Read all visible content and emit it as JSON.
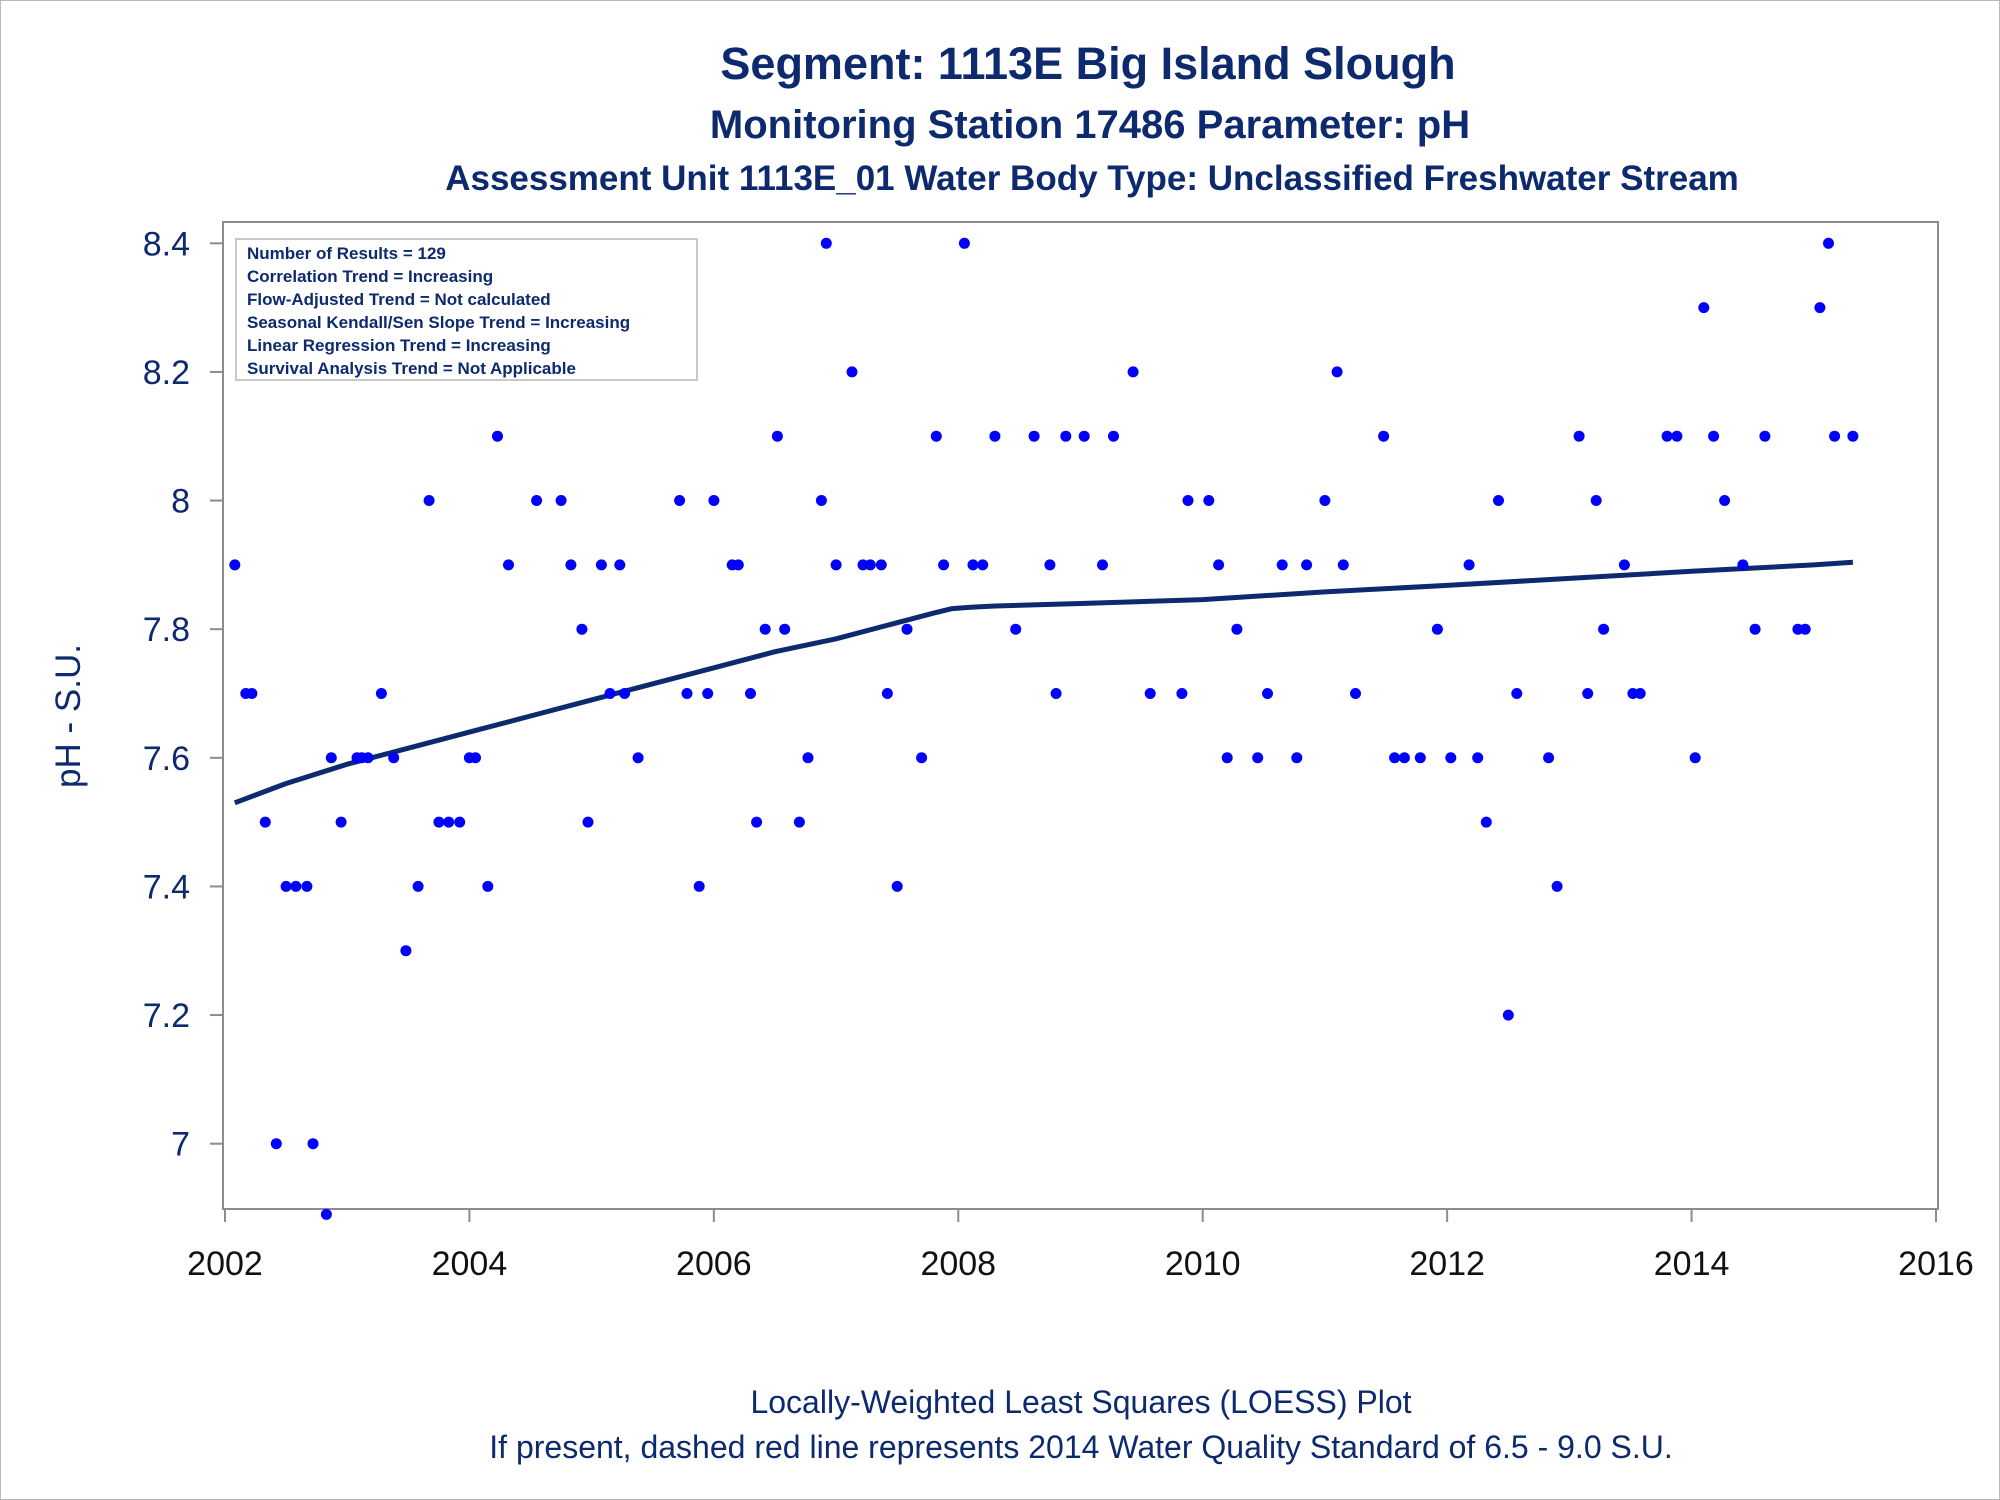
{
  "titles": {
    "line1": "Segment: 1113E  Big Island Slough",
    "line2": "Monitoring Station 17486 Parameter: pH",
    "line3": "Assessment Unit 1113E_01   Water Body Type: Unclassified Freshwater Stream"
  },
  "footnotes": {
    "line1": "Locally-Weighted Least Squares (LOESS) Plot",
    "line2": "If present, dashed red line represents 2014 Water Quality Standard of 6.5 - 9.0 S.U."
  },
  "inset": {
    "lines": [
      "Number of Results = 129",
      "Correlation Trend = Increasing",
      "Flow-Adjusted Trend = Not calculated",
      "Seasonal Kendall/Sen Slope Trend = Increasing",
      "Linear Regression Trend = Increasing",
      "Survival Analysis Trend = Not Applicable"
    ]
  },
  "colors": {
    "points": "#0000ff",
    "loess": "#0d2a6e",
    "text": "#0d2a6e",
    "axis": "#8c8c8c"
  },
  "chart_data": {
    "type": "scatter",
    "title": "Segment: 1113E  Big Island Slough",
    "xlabel": "",
    "ylabel": "pH - S.U.",
    "xlim": [
      2002,
      2016
    ],
    "ylim": [
      6.9,
      8.43
    ],
    "xticks": [
      2002,
      2004,
      2006,
      2008,
      2010,
      2012,
      2014,
      2016
    ],
    "xtick_labels": [
      "2002",
      "2004",
      "2006",
      "2008",
      "2010",
      "2012",
      "2014",
      "2016"
    ],
    "yticks": [
      7,
      7.2,
      7.4,
      7.6,
      7.8,
      8,
      8.2,
      8.4
    ],
    "ytick_labels": [
      "7",
      "7.2",
      "7.4",
      "7.6",
      "7.8",
      "8",
      "8.2",
      "8.4"
    ],
    "grid": false,
    "series": [
      {
        "kind": "points",
        "x": [
          2002.08,
          2002.17,
          2002.22,
          2002.33,
          2002.42,
          2002.5,
          2002.58,
          2002.67,
          2002.72,
          2002.83,
          2002.87,
          2002.95,
          2003.08,
          2003.12,
          2003.17,
          2003.28,
          2003.38,
          2003.48,
          2003.58,
          2003.67,
          2003.75,
          2003.83,
          2003.92,
          2004.0,
          2004.05,
          2004.15,
          2004.23,
          2004.32,
          2004.55,
          2004.75,
          2004.83,
          2004.92,
          2004.97,
          2005.08,
          2005.15,
          2005.23,
          2005.27,
          2005.38,
          2005.72,
          2005.78,
          2005.88,
          2005.95,
          2006.0,
          2006.15,
          2006.2,
          2006.3,
          2006.35,
          2006.42,
          2006.52,
          2006.58,
          2006.7,
          2006.77,
          2006.88,
          2006.92,
          2007.0,
          2007.13,
          2007.22,
          2007.28,
          2007.37,
          2007.42,
          2007.5,
          2007.58,
          2007.7,
          2007.82,
          2007.88,
          2008.05,
          2008.12,
          2008.2,
          2008.3,
          2008.47,
          2008.62,
          2008.75,
          2008.8,
          2008.88,
          2009.03,
          2009.18,
          2009.27,
          2009.43,
          2009.57,
          2009.83,
          2009.88,
          2010.05,
          2010.13,
          2010.2,
          2010.28,
          2010.45,
          2010.53,
          2010.65,
          2010.77,
          2010.85,
          2011.0,
          2011.1,
          2011.15,
          2011.25,
          2011.48,
          2011.57,
          2011.65,
          2011.78,
          2011.92,
          2012.03,
          2012.18,
          2012.25,
          2012.32,
          2012.42,
          2012.5,
          2012.57,
          2012.83,
          2012.9,
          2013.08,
          2013.15,
          2013.22,
          2013.28,
          2013.45,
          2013.52,
          2013.58,
          2013.8,
          2013.88,
          2014.03,
          2014.1,
          2014.18,
          2014.27,
          2014.42,
          2014.52,
          2014.6,
          2014.87,
          2014.93,
          2015.05,
          2015.12,
          2015.17,
          2015.32
        ],
        "y": [
          7.9,
          7.7,
          7.7,
          7.5,
          7.0,
          7.4,
          7.4,
          7.4,
          7.0,
          6.89,
          7.6,
          7.5,
          7.6,
          7.6,
          7.6,
          7.7,
          7.6,
          7.3,
          7.4,
          8.0,
          7.5,
          7.5,
          7.5,
          7.6,
          7.6,
          7.4,
          8.1,
          7.9,
          8.0,
          8.0,
          7.9,
          7.8,
          7.5,
          7.9,
          7.7,
          7.9,
          7.7,
          7.6,
          8.0,
          7.7,
          7.4,
          7.7,
          8.0,
          7.9,
          7.9,
          7.7,
          7.5,
          7.8,
          8.1,
          7.8,
          7.5,
          7.6,
          8.0,
          8.4,
          7.9,
          8.2,
          7.9,
          7.9,
          7.9,
          7.7,
          7.4,
          7.8,
          7.6,
          8.1,
          7.9,
          8.4,
          7.9,
          7.9,
          8.1,
          7.8,
          8.1,
          7.9,
          7.7,
          8.1,
          8.1,
          7.9,
          8.1,
          8.2,
          7.7,
          7.7,
          8.0,
          8.0,
          7.9,
          7.6,
          7.8,
          7.6,
          7.7,
          7.9,
          7.6,
          7.9,
          8.0,
          8.2,
          7.9,
          7.7,
          8.1,
          7.6,
          7.6,
          7.6,
          7.8,
          7.6,
          7.9,
          7.6,
          7.5,
          8.0,
          7.2,
          7.7,
          7.6,
          7.4,
          8.1,
          7.7,
          8.0,
          7.8,
          7.9,
          7.7,
          7.7,
          8.1,
          8.1,
          7.6,
          8.3,
          8.1,
          8.0,
          7.9,
          7.8,
          8.1,
          7.8,
          7.8,
          8.3,
          8.4,
          8.1,
          8.1
        ]
      },
      {
        "kind": "line",
        "x": [
          2002.08,
          2002.5,
          2003.0,
          2003.5,
          2004.0,
          2004.5,
          2005.0,
          2005.5,
          2006.0,
          2006.5,
          2007.0,
          2007.5,
          2007.8,
          2007.95,
          2008.1,
          2008.3,
          2009.0,
          2010.0,
          2011.0,
          2012.0,
          2013.0,
          2014.0,
          2015.0,
          2015.32
        ],
        "y": [
          7.53,
          7.56,
          7.59,
          7.615,
          7.64,
          7.665,
          7.69,
          7.715,
          7.74,
          7.765,
          7.785,
          7.81,
          7.825,
          7.832,
          7.834,
          7.836,
          7.84,
          7.846,
          7.858,
          7.868,
          7.879,
          7.89,
          7.9,
          7.904
        ]
      }
    ]
  }
}
